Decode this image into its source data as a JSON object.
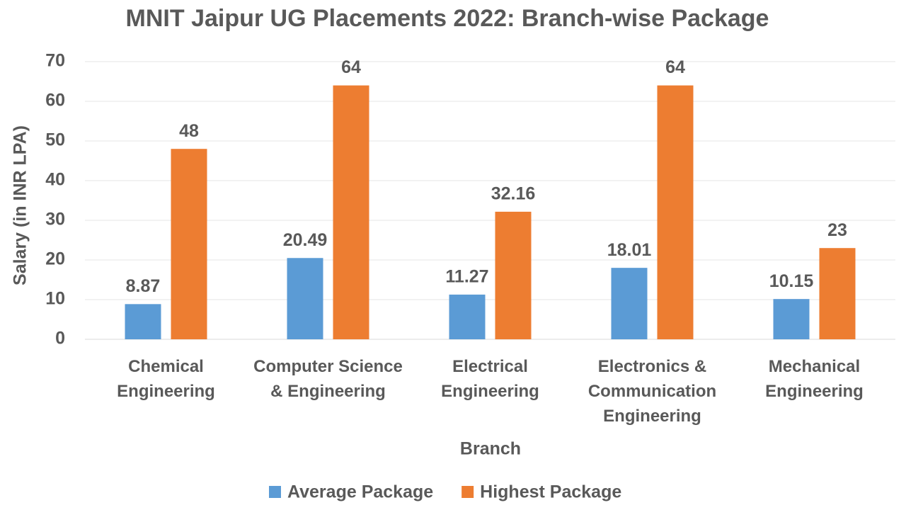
{
  "chart_data": {
    "type": "bar",
    "title": "MNIT Jaipur UG Placements 2022: Branch-wise Package",
    "x_label": "Branch",
    "y_label": "Salary (in INR LPA)",
    "categories": [
      "Chemical Engineering",
      "Computer Science & Engineering",
      "Electrical Engineering",
      "Electronics & Communication Engineering",
      "Mechanical Engineering"
    ],
    "series": [
      {
        "name": "Average Package",
        "color": "#5b9bd5",
        "values": [
          8.87,
          20.49,
          11.27,
          18.01,
          10.15
        ]
      },
      {
        "name": "Highest Package",
        "color": "#ed7d31",
        "values": [
          48,
          64,
          32.16,
          64,
          23
        ]
      }
    ],
    "ylim": [
      0,
      70
    ],
    "yticks": [
      0,
      10,
      20,
      30,
      40,
      50,
      60,
      70
    ],
    "grid": true,
    "legend": "bottom"
  }
}
